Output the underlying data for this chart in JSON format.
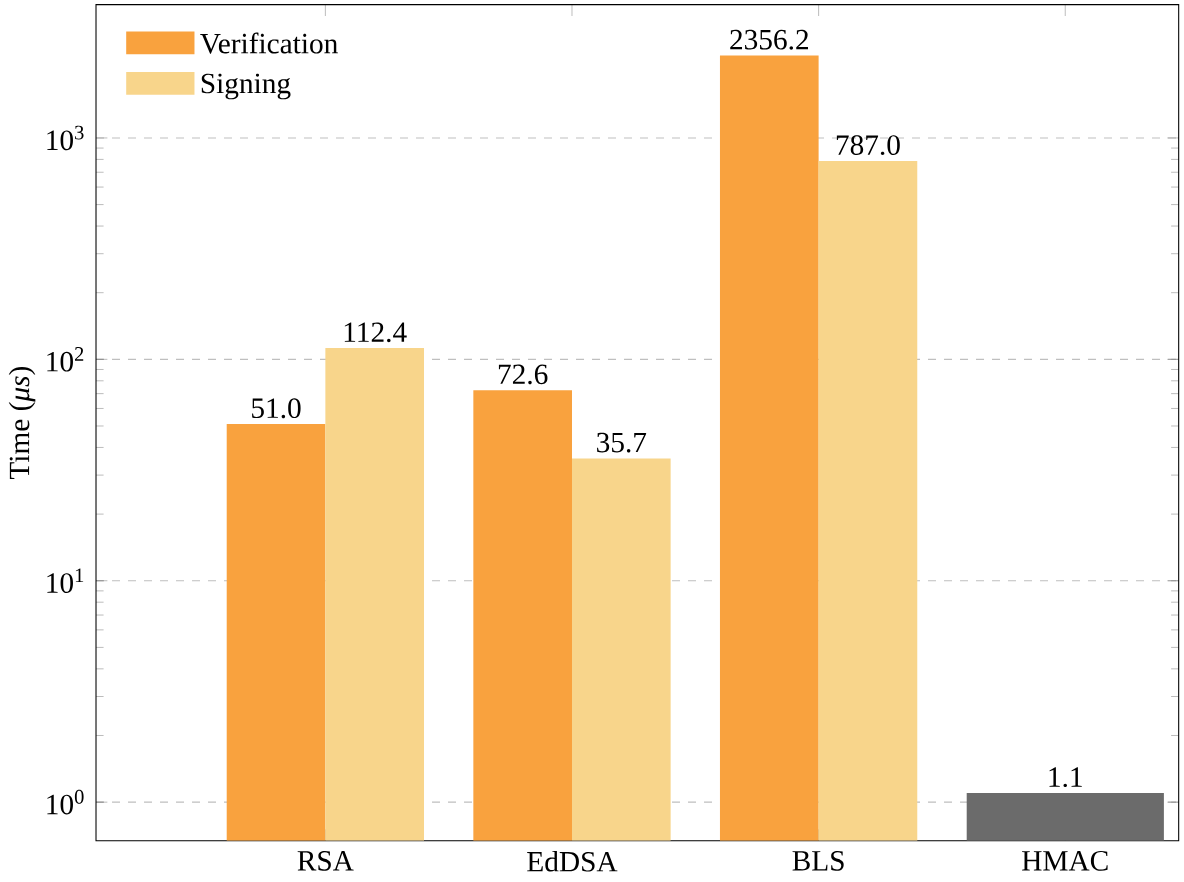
{
  "chart_data": {
    "type": "bar",
    "ylabel": "Time (*μs*)",
    "log": "y",
    "grid": "y",
    "legend": "top left",
    "categories": [
      "RSA",
      "EdDSA",
      "BLS",
      "HMAC"
    ],
    "series": [
      {
        "name": "Verification",
        "color": "#f9a23e",
        "values": [
          51.0,
          72.6,
          2356.2,
          null
        ],
        "value_labels": [
          "51.0",
          "72.6",
          "2356.2",
          null
        ]
      },
      {
        "name": "Signing",
        "color": "#f8d58b",
        "values": [
          112.4,
          35.7,
          787.0,
          null
        ],
        "value_labels": [
          "112.4",
          "35.7",
          "787.0",
          null
        ]
      },
      {
        "color": "#6b6b6b",
        "values": [
          null,
          null,
          null,
          1.1
        ],
        "value_labels": [
          null,
          null,
          null,
          "1.1"
        ]
      }
    ],
    "ylim": [
      0.67,
      4000
    ],
    "yticks": [
      {
        "value": 1,
        "label": "10$^{0}$"
      },
      {
        "value": 10,
        "label": "10$^{1}$"
      },
      {
        "value": 100,
        "label": "10$^{2}$"
      },
      {
        "value": 1000,
        "label": "10$^{3}$"
      }
    ]
  }
}
